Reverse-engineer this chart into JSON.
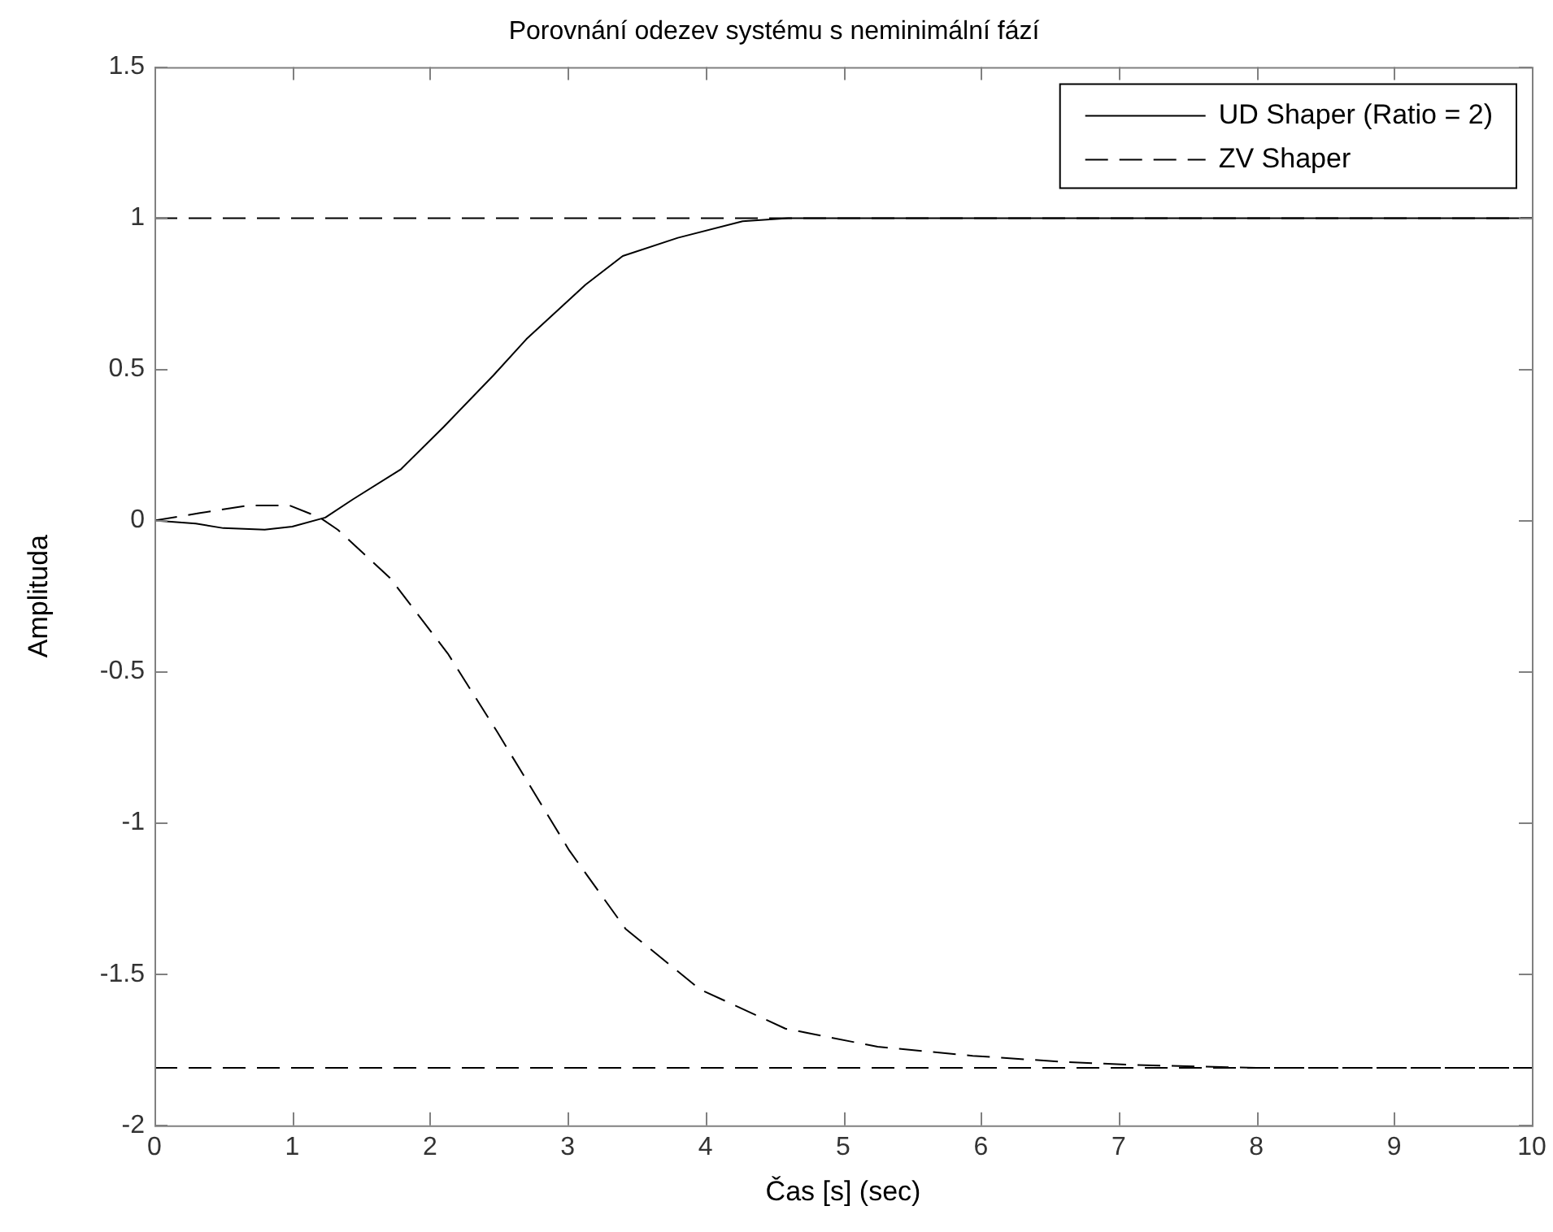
{
  "chart_data": {
    "type": "line",
    "title": "Porovnání odezev systému s neminimální fází",
    "xlabel": "Čas [s] (sec)",
    "ylabel": "Amplituda",
    "xlim": [
      0,
      10
    ],
    "xticks": [
      0,
      1,
      2,
      3,
      4,
      5,
      6,
      7,
      8,
      9,
      10
    ],
    "ylim": [
      -2,
      1.5
    ],
    "yticks": [
      -2,
      -1.5,
      -1,
      -0.5,
      0,
      0.5,
      1,
      1.5
    ],
    "grid": false,
    "legend": "top right",
    "marker": "none",
    "series": [
      {
        "name": "UD Shaper (Ratio = 2)",
        "color": "#000000",
        "line_style": "solid",
        "x": [
          0,
          0.3,
          0.5,
          0.8,
          1.0,
          1.24,
          1.44,
          1.79,
          2.1,
          2.46,
          2.7,
          3.13,
          3.4,
          3.8,
          4.27,
          4.6,
          5,
          6,
          7,
          8,
          9,
          10
        ],
        "values": [
          0,
          -0.01,
          -0.025,
          -0.03,
          -0.02,
          0.01,
          0.07,
          0.17,
          0.31,
          0.48,
          0.6,
          0.78,
          0.875,
          0.935,
          0.99,
          1,
          1,
          1,
          1,
          1,
          1,
          1
        ]
      },
      {
        "name": "ZV Shaper",
        "color": "#000000",
        "line_style": "dashed",
        "x": [
          0,
          0.33,
          0.68,
          0.98,
          1.2,
          1.33,
          1.71,
          2.13,
          2.49,
          3.01,
          3.42,
          3.96,
          4.58,
          5.25,
          5.94,
          6.6,
          7.1,
          8,
          9,
          10
        ],
        "values": [
          0,
          0.025,
          0.05,
          0.05,
          0.01,
          -0.03,
          -0.19,
          -0.44,
          -0.7,
          -1.09,
          -1.35,
          -1.55,
          -1.68,
          -1.74,
          -1.77,
          -1.79,
          -1.8,
          -1.81,
          -1.81,
          -1.81
        ]
      }
    ],
    "ref_lines": [
      {
        "axis": "y",
        "value": 1,
        "color": "#000000",
        "line_style": "dashed"
      },
      {
        "axis": "y",
        "value": -1.81,
        "color": "#000000",
        "line_style": "dashed"
      }
    ]
  }
}
